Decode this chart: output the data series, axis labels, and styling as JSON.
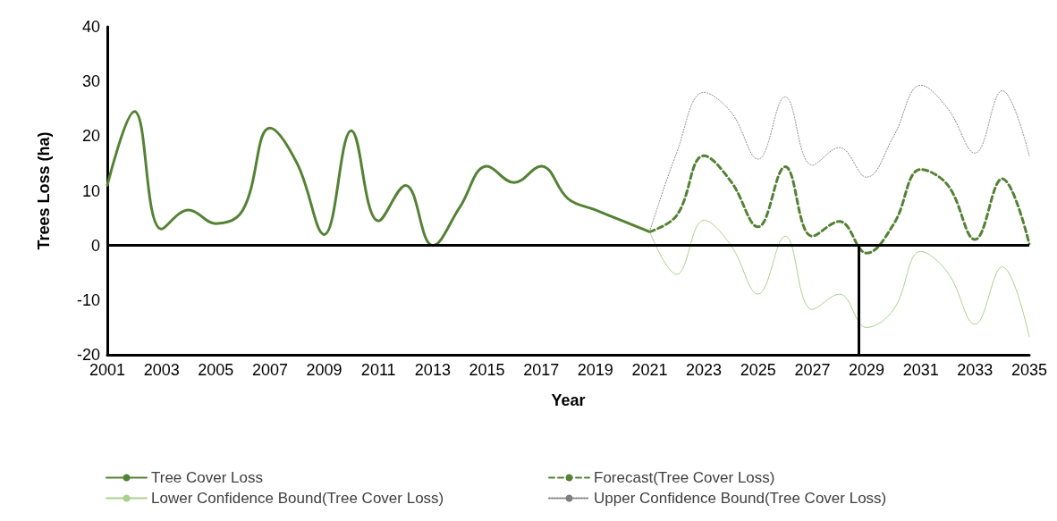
{
  "chart_data": {
    "type": "line",
    "xlabel": "Year",
    "ylabel": "Trees Loss (ha)",
    "xlim": [
      2001,
      2035
    ],
    "xticks": [
      2001,
      2003,
      2005,
      2007,
      2009,
      2011,
      2013,
      2015,
      2017,
      2019,
      2021,
      2023,
      2025,
      2027,
      2029,
      2031,
      2033,
      2035
    ],
    "ylim": [
      -20,
      40
    ],
    "yticks": [
      -20,
      -10,
      0,
      10,
      20,
      30,
      40
    ],
    "grid": false,
    "legend": "bottom",
    "marker": "none",
    "ref_lines": [
      {
        "axis": "y",
        "value": 0,
        "color": "#000000"
      },
      {
        "axis": "x",
        "value": 2028.7,
        "color": "#000000"
      }
    ],
    "series": [
      {
        "name": "Tree Cover Loss",
        "color": "#548235",
        "line_style": "solid",
        "x": [
          2001,
          2002,
          2003,
          2004,
          2005,
          2006,
          2007,
          2008,
          2009,
          2010,
          2011,
          2012,
          2013,
          2014,
          2015,
          2016,
          2017,
          2018,
          2019,
          2020,
          2021
        ],
        "values": [
          11,
          24.5,
          3,
          6.5,
          4,
          6.5,
          21.5,
          15,
          2,
          21,
          4.5,
          11,
          0,
          7,
          14.5,
          11.5,
          14.5,
          8.5,
          6.5,
          4.5,
          2.5
        ]
      },
      {
        "name": "Forecast(Tree Cover Loss)",
        "color": "#548235",
        "line_style": "dashed",
        "x": [
          2021,
          2022,
          2023,
          2024,
          2025,
          2026,
          2027,
          2028,
          2029,
          2030,
          2031,
          2032,
          2033,
          2034,
          2035
        ],
        "values": [
          2.5,
          5.5,
          16.4,
          11.7,
          3.4,
          14.4,
          1.7,
          4.4,
          -1.4,
          3.9,
          13.9,
          11,
          1.1,
          12.2,
          0.3
        ]
      },
      {
        "name": "Lower Confidence Bound(Tree Cover Loss)",
        "color": "#a9d18e",
        "line_style": "solid",
        "x": [
          2021,
          2022,
          2023,
          2024,
          2025,
          2026,
          2027,
          2028,
          2029,
          2030,
          2031,
          2032,
          2033,
          2034,
          2035
        ],
        "values": [
          2.5,
          -5.3,
          4.6,
          0,
          -8.9,
          1.7,
          -11.7,
          -8.9,
          -15,
          -11.7,
          -1.1,
          -5,
          -14.4,
          -3.9,
          -16.7
        ]
      },
      {
        "name": "Upper Confidence Bound(Tree Cover Loss)",
        "color": "#7f7f7f",
        "line_style": "dotted",
        "x": [
          2021,
          2022,
          2023,
          2024,
          2025,
          2026,
          2027,
          2028,
          2029,
          2030,
          2031,
          2032,
          2033,
          2034,
          2035
        ],
        "values": [
          2.5,
          17,
          28,
          24.4,
          15.8,
          27.2,
          14.7,
          17.9,
          12.5,
          20,
          29.3,
          25,
          16.9,
          28.3,
          16.4
        ]
      }
    ]
  }
}
